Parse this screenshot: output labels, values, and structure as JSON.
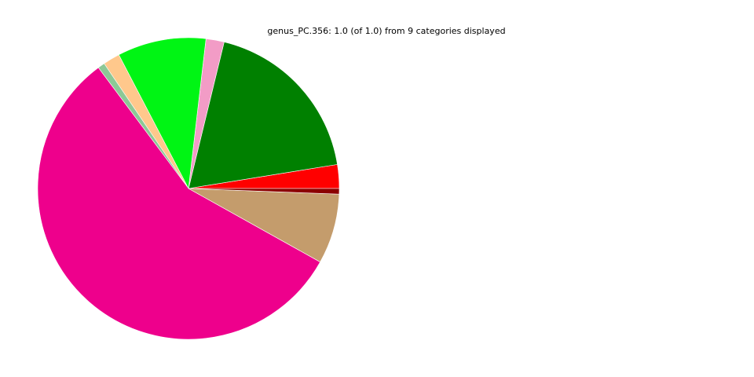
{
  "chart_data": {
    "type": "pie",
    "title": "genus_PC.356: 1.0 (of 1.0) from 9 categories displayed",
    "start_angle_deg": 0,
    "direction": "counterclockwise",
    "slices": [
      {
        "value": 0.0255,
        "color": "#ff0000"
      },
      {
        "value": 0.1865,
        "color": "#008000"
      },
      {
        "value": 0.0195,
        "color": "#f29cc6"
      },
      {
        "value": 0.095,
        "color": "#00f514"
      },
      {
        "value": 0.018,
        "color": "#ffc88c"
      },
      {
        "value": 0.0075,
        "color": "#8cc896"
      },
      {
        "value": 0.567,
        "color": "#ee008c"
      },
      {
        "value": 0.075,
        "color": "#c49c6c"
      },
      {
        "value": 0.006,
        "color": "#8c0000"
      }
    ]
  }
}
